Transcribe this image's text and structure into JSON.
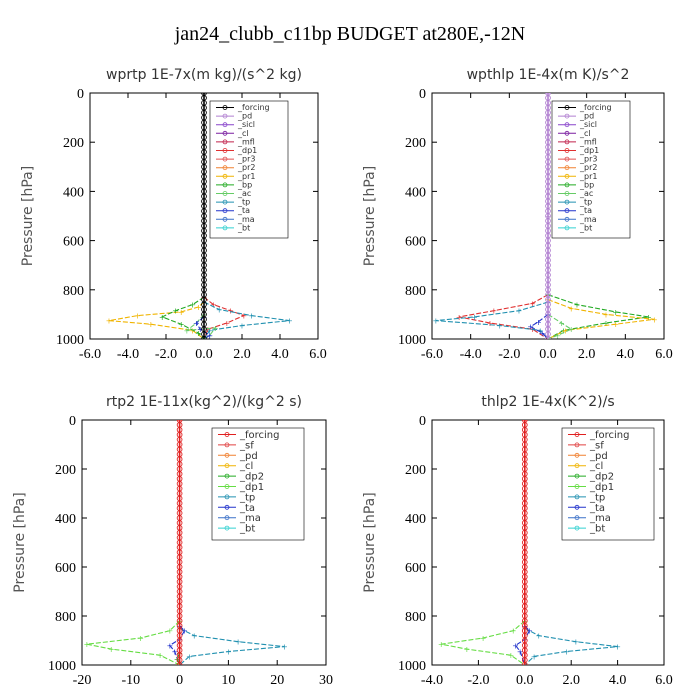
{
  "suptitle": "jan24_clubb_c11bp  BUDGET at280E,-12N",
  "chart_data": [
    {
      "type": "line",
      "title": "wprtp  1E-7x(m kg)/(s^2 kg)",
      "ylabel": "Pressure [hPa]",
      "xlim": [
        -6,
        6
      ],
      "ylim": [
        1000,
        0
      ],
      "xticks": [
        "-6.0",
        "-4.0",
        "-2.0",
        "0.0",
        "2.0",
        "4.0",
        "6.0"
      ],
      "xtick_values": [
        -6,
        -4,
        -2,
        0,
        2,
        4,
        6
      ],
      "yticks": [
        "0",
        "200",
        "400",
        "600",
        "800",
        "1000"
      ],
      "ytick_values": [
        0,
        200,
        400,
        600,
        800,
        1000
      ],
      "legend": [
        "_forcing",
        "_pd",
        "_sicl",
        "_cl",
        "_mfl",
        "_dp1",
        "_pr3",
        "_pr2",
        "_pr1",
        "_bp",
        "_ac",
        "_tp",
        "_ta",
        "_ma",
        "_bt"
      ],
      "series": [
        {
          "name": "_pr1",
          "color": "#f0b400",
          "x": [
            0,
            -0.3,
            -1.2,
            -3.5,
            -5.0,
            -2.8,
            -0.6,
            0
          ],
          "y": [
            850,
            870,
            890,
            905,
            925,
            940,
            965,
            1000
          ]
        },
        {
          "name": "_bp",
          "color": "#22aa22",
          "x": [
            0,
            -0.6,
            -1.5,
            -2.2,
            -1.2,
            -0.3,
            0
          ],
          "y": [
            830,
            860,
            885,
            910,
            940,
            975,
            1000
          ]
        },
        {
          "name": "_dp1",
          "color": "#e03030",
          "x": [
            0,
            0.5,
            1.4,
            2.1,
            1.2,
            0.2,
            0
          ],
          "y": [
            830,
            860,
            885,
            905,
            935,
            960,
            1000
          ]
        },
        {
          "name": "_tp",
          "color": "#2090b0",
          "x": [
            0,
            0.8,
            2.5,
            4.5,
            2.0,
            0.3,
            0
          ],
          "y": [
            850,
            880,
            905,
            925,
            945,
            965,
            1000
          ]
        },
        {
          "name": "_ac",
          "color": "#66cc66",
          "x": [
            0,
            -0.4,
            -0.9,
            0.6,
            0.3,
            0
          ],
          "y": [
            900,
            935,
            965,
            955,
            985,
            1000
          ]
        },
        {
          "name": "_ta",
          "color": "#2233cc",
          "x": [
            0,
            -0.4,
            -0.2,
            0.3,
            0
          ],
          "y": [
            910,
            935,
            960,
            985,
            1000
          ]
        },
        {
          "name": "_forcing",
          "color": "#000000",
          "x": [
            0,
            0
          ],
          "y": [
            0,
            1000
          ]
        }
      ]
    },
    {
      "type": "line",
      "title": "wpthlp  1E-4x(m K)/s^2",
      "ylabel": "Pressure [hPa]",
      "xlim": [
        -6,
        6
      ],
      "ylim": [
        1000,
        0
      ],
      "xticks": [
        "-6.0",
        "-4.0",
        "-2.0",
        "0.0",
        "2.0",
        "4.0",
        "6.0"
      ],
      "xtick_values": [
        -6,
        -4,
        -2,
        0,
        2,
        4,
        6
      ],
      "yticks": [
        "0",
        "200",
        "400",
        "600",
        "800",
        "1000"
      ],
      "ytick_values": [
        0,
        200,
        400,
        600,
        800,
        1000
      ],
      "legend": [
        "_forcing",
        "_pd",
        "_sicl",
        "_cl",
        "_mfl",
        "_dp1",
        "_pr3",
        "_pr2",
        "_pr1",
        "_bp",
        "_ac",
        "_tp",
        "_ta",
        "_ma",
        "_bt"
      ],
      "series": [
        {
          "name": "_dp1",
          "color": "#e03030",
          "x": [
            0,
            -0.8,
            -2.8,
            -4.6,
            -3.0,
            -0.8,
            0
          ],
          "y": [
            820,
            855,
            885,
            910,
            935,
            960,
            1000
          ]
        },
        {
          "name": "_tp",
          "color": "#2090b0",
          "x": [
            0,
            -1.5,
            -3.8,
            -5.8,
            -2.5,
            -0.4,
            0
          ],
          "y": [
            850,
            885,
            910,
            925,
            945,
            965,
            1000
          ]
        },
        {
          "name": "_bp",
          "color": "#22aa22",
          "x": [
            0,
            1.5,
            3.5,
            5.2,
            3.0,
            0.8,
            0
          ],
          "y": [
            820,
            860,
            890,
            910,
            935,
            965,
            1000
          ]
        },
        {
          "name": "_pr1",
          "color": "#f0b400",
          "x": [
            0,
            1.2,
            3.0,
            5.5,
            3.5,
            0.9,
            0
          ],
          "y": [
            840,
            875,
            900,
            920,
            940,
            965,
            1000
          ]
        },
        {
          "name": "_ac",
          "color": "#66cc66",
          "x": [
            0,
            0.7,
            1.2,
            0.5,
            0
          ],
          "y": [
            900,
            935,
            960,
            985,
            1000
          ]
        },
        {
          "name": "_ta",
          "color": "#2233cc",
          "x": [
            0,
            -0.5,
            -0.9,
            -0.3,
            0
          ],
          "y": [
            900,
            930,
            950,
            975,
            1000
          ]
        },
        {
          "name": "_pd",
          "color": "#b07fd0",
          "x": [
            0,
            0,
            0
          ],
          "y": [
            0,
            500,
            1000
          ]
        }
      ]
    },
    {
      "type": "line",
      "title": "rtp2  1E-11x(kg^2)/(kg^2 s)",
      "ylabel": "Pressure [hPa]",
      "xlim": [
        -20,
        30
      ],
      "ylim": [
        1000,
        0
      ],
      "xticks": [
        "-20",
        "-10",
        "0",
        "10",
        "20",
        "30"
      ],
      "xtick_values": [
        -20,
        -10,
        0,
        10,
        20,
        30
      ],
      "yticks": [
        "0",
        "200",
        "400",
        "600",
        "800",
        "1000"
      ],
      "ytick_values": [
        0,
        200,
        400,
        600,
        800,
        1000
      ],
      "legend": [
        "_forcing",
        "_sf",
        "_pd",
        "_cl",
        "_dp2",
        "_dp1",
        "_tp",
        "_ta",
        "_ma",
        "_bt"
      ],
      "series": [
        {
          "name": "_dp1",
          "color": "#66dd44",
          "x": [
            0,
            -2,
            -8,
            -19,
            -14,
            -4,
            0
          ],
          "y": [
            820,
            860,
            890,
            915,
            935,
            960,
            1000
          ]
        },
        {
          "name": "_tp",
          "color": "#2090b0",
          "x": [
            0,
            3,
            12,
            21.5,
            10,
            2,
            0
          ],
          "y": [
            850,
            880,
            905,
            925,
            945,
            965,
            1000
          ]
        },
        {
          "name": "_ta",
          "color": "#2233cc",
          "x": [
            0,
            1,
            0,
            -2,
            -1,
            0
          ],
          "y": [
            840,
            860,
            895,
            920,
            945,
            1000
          ]
        },
        {
          "name": "_dp2",
          "color": "#22aa22",
          "x": [
            0,
            -0.5,
            0
          ],
          "y": [
            950,
            975,
            1000
          ]
        },
        {
          "name": "_forcing",
          "color": "#e02020",
          "x": [
            0,
            0
          ],
          "y": [
            0,
            1000
          ]
        }
      ]
    },
    {
      "type": "line",
      "title": "thlp2  1E-4x(K^2)/s",
      "ylabel": "Pressure [hPa]",
      "xlim": [
        -4,
        6
      ],
      "ylim": [
        1000,
        0
      ],
      "xticks": [
        "-4.0",
        "-2.0",
        "0.0",
        "2.0",
        "4.0",
        "6.0"
      ],
      "xtick_values": [
        -4,
        -2,
        0,
        2,
        4,
        6
      ],
      "yticks": [
        "0",
        "200",
        "400",
        "600",
        "800",
        "1000"
      ],
      "ytick_values": [
        0,
        200,
        400,
        600,
        800,
        1000
      ],
      "legend": [
        "_forcing",
        "_sf",
        "_pd",
        "_cl",
        "_dp2",
        "_dp1",
        "_tp",
        "_ta",
        "_ma",
        "_bt"
      ],
      "series": [
        {
          "name": "_dp1",
          "color": "#66dd44",
          "x": [
            0,
            -0.5,
            -1.8,
            -3.6,
            -2.5,
            -0.6,
            0
          ],
          "y": [
            820,
            860,
            890,
            915,
            935,
            960,
            1000
          ]
        },
        {
          "name": "_tp",
          "color": "#2090b0",
          "x": [
            0,
            0.6,
            2.2,
            4.0,
            1.8,
            0.4,
            0
          ],
          "y": [
            850,
            880,
            905,
            925,
            945,
            965,
            1000
          ]
        },
        {
          "name": "_ta",
          "color": "#2233cc",
          "x": [
            0,
            0.2,
            0,
            -0.4,
            -0.2,
            0
          ],
          "y": [
            840,
            860,
            895,
            920,
            945,
            1000
          ]
        },
        {
          "name": "_forcing",
          "color": "#e02020",
          "x": [
            0,
            0
          ],
          "y": [
            0,
            1000
          ]
        }
      ]
    }
  ]
}
